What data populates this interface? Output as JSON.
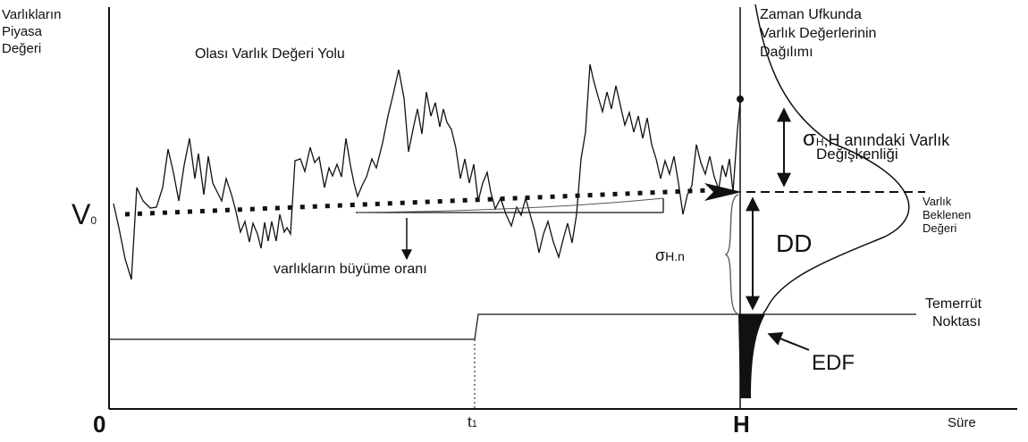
{
  "labels": {
    "y_axis_title_1": "Varlıkların",
    "y_axis_title_2": "Piyasa",
    "y_axis_title_3": "Değeri",
    "path_title": "Olası Varlık Değeri Yolu",
    "dist_title_1": "Zaman Ufkunda",
    "dist_title_2": "Varlık Değerlerinin",
    "dist_title_3": "Dağılımı",
    "sigma_symbol": "σ",
    "sigma_sub": "H",
    "sigma_text_1": ",H anındaki Varlık",
    "sigma_text_2": "Değişkenliği",
    "expected_1": "Varlık",
    "expected_2": "Beklenen",
    "expected_3": "Değeri",
    "v0_letter": "V",
    "v0_sub": "0",
    "dd": "DD",
    "sigma_n_symbol": "σ",
    "sigma_n_rest": "H.n",
    "growth_rate": "varlıkların büyüme oranı",
    "default_point_1": "Temerrüt",
    "default_point_2": "Noktası",
    "edf": "EDF",
    "x_origin": "0",
    "t1_letter": "t",
    "t1_sub": "1",
    "h_label": "H",
    "time_label": "Süre"
  },
  "colors": {
    "line": "#111111",
    "thin": "#444444",
    "background": "#ffffff"
  }
}
